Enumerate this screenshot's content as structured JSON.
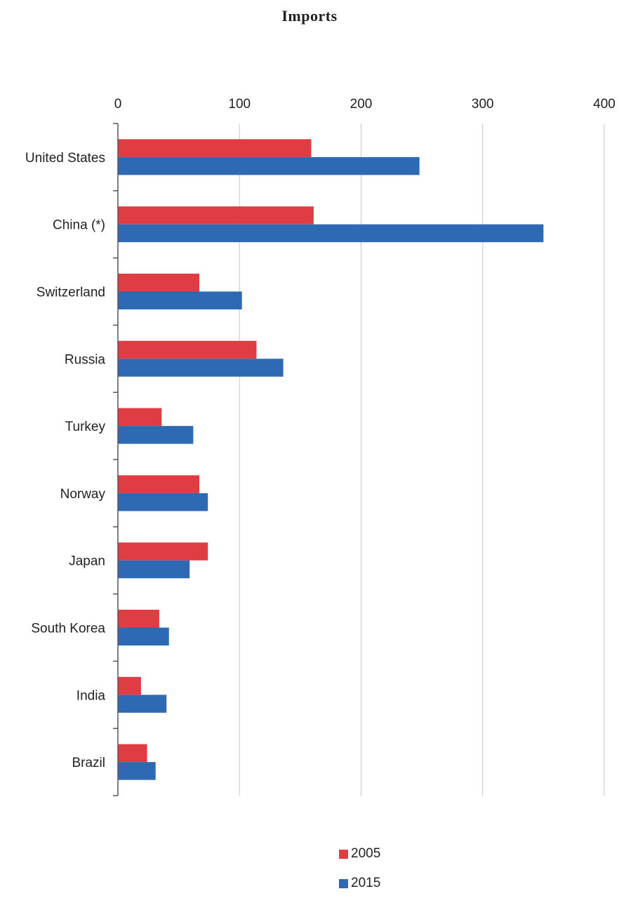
{
  "chart_data": {
    "type": "bar",
    "orientation": "horizontal",
    "title": "Imports",
    "categories": [
      "United States",
      "China (*)",
      "Switzerland",
      "Russia",
      "Turkey",
      "Norway",
      "Japan",
      "South Korea",
      "India",
      "Brazil"
    ],
    "series": [
      {
        "name": "2005",
        "color": "#e03c44",
        "values": [
          159,
          161,
          67,
          114,
          36,
          67,
          74,
          34,
          19,
          24
        ]
      },
      {
        "name": "2015",
        "color": "#2e6ab4",
        "values": [
          248,
          350,
          102,
          136,
          62,
          74,
          59,
          42,
          40,
          31
        ]
      }
    ],
    "xlim": [
      0,
      400
    ],
    "xticks": [
      "0",
      "100",
      "200",
      "300",
      "400"
    ],
    "axis_position": "top",
    "grid": true,
    "legend_position": "bottom"
  }
}
